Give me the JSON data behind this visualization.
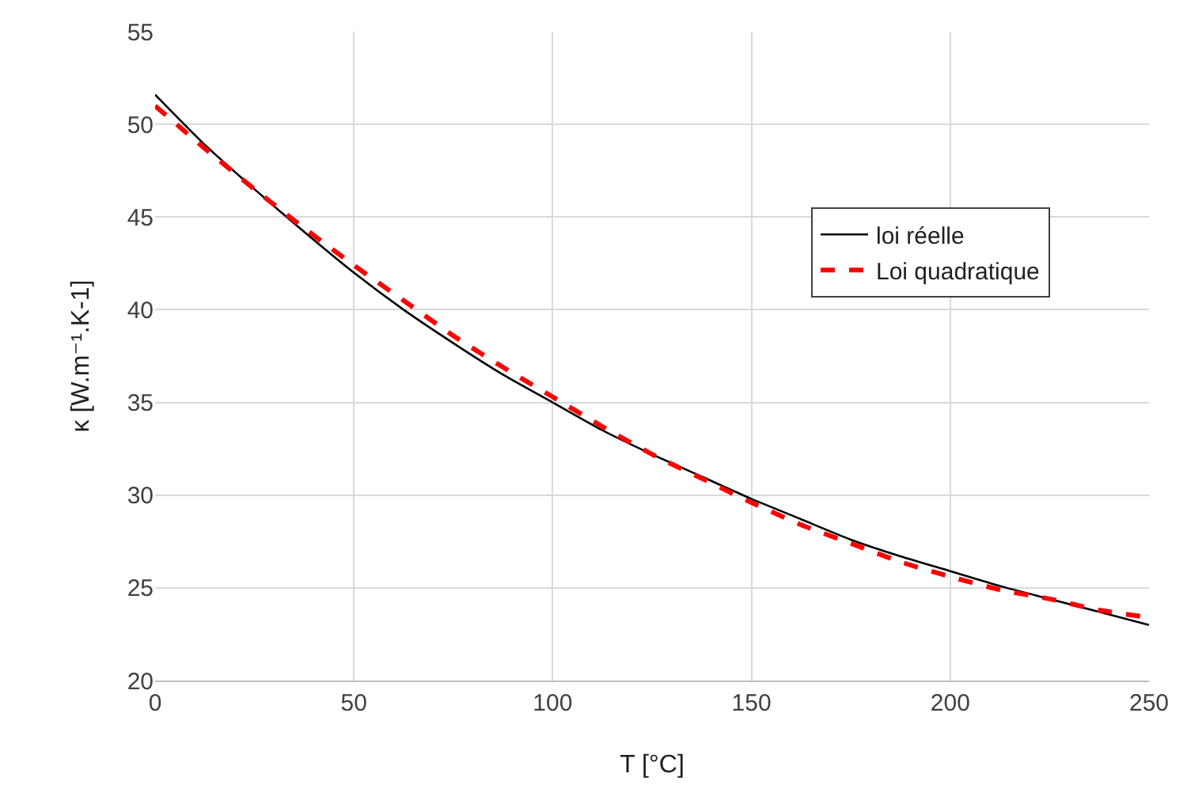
{
  "chart_data": {
    "type": "line",
    "xlabel": "T [°C]",
    "ylabel": "κ [W.m⁻¹.K-1]",
    "x": [
      0,
      12.5,
      25,
      37.5,
      50,
      62.5,
      75,
      87.5,
      100,
      112.5,
      125,
      137.5,
      150,
      162.5,
      175,
      187.5,
      200,
      212.5,
      225,
      237.5,
      250
    ],
    "series": [
      {
        "name": "loi réelle",
        "color": "#000000",
        "line_style": "solid",
        "values": [
          51.6,
          48.9,
          46.5,
          44.2,
          42.0,
          40.0,
          38.2,
          36.5,
          35.0,
          33.5,
          32.2,
          31.0,
          29.8,
          28.7,
          27.6,
          26.7,
          25.9,
          25.1,
          24.4,
          23.7,
          23.0
        ]
      },
      {
        "name": "Loi quadratique",
        "color": "#ff0000",
        "line_style": "dashed",
        "values": [
          51.0,
          48.7,
          46.5,
          44.4,
          42.4,
          40.5,
          38.6,
          36.9,
          35.3,
          33.7,
          32.2,
          30.9,
          29.6,
          28.4,
          27.4,
          26.4,
          25.6,
          24.9,
          24.4,
          23.8,
          23.4
        ]
      }
    ],
    "xlim": [
      0,
      250
    ],
    "xticks": [
      0,
      50,
      100,
      150,
      200,
      250
    ],
    "ylim": [
      20,
      55
    ],
    "yticks": [
      20,
      25,
      30,
      35,
      40,
      45,
      50,
      55
    ],
    "grid": true,
    "legend": "right",
    "marker": "none"
  }
}
